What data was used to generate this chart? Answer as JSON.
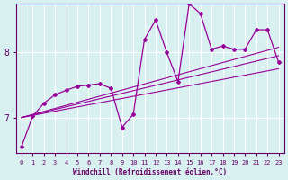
{
  "xlabel": "Windchill (Refroidissement éolien,°C)",
  "ylabel": "",
  "bg_color": "#d8f0f0",
  "grid_color": "#ffffff",
  "line_color": "#990099",
  "axis_color": "#660066",
  "text_color": "#660066",
  "xlim": [
    -0.5,
    23.5
  ],
  "ylim": [
    6.45,
    8.75
  ],
  "xticks": [
    0,
    1,
    2,
    3,
    4,
    5,
    6,
    7,
    8,
    9,
    10,
    11,
    12,
    13,
    14,
    15,
    16,
    17,
    18,
    19,
    20,
    21,
    22,
    23
  ],
  "yticks": [
    7,
    8
  ],
  "zigzag_x": [
    0,
    1,
    2,
    3,
    4,
    5,
    6,
    7,
    8,
    9,
    10,
    11,
    12,
    13,
    14,
    15,
    16,
    17,
    18,
    19,
    20,
    21,
    22,
    23
  ],
  "zigzag_y": [
    6.55,
    7.02,
    7.22,
    7.35,
    7.42,
    7.48,
    7.5,
    7.52,
    7.45,
    6.85,
    7.05,
    8.2,
    8.5,
    8.0,
    7.55,
    8.75,
    8.6,
    8.05,
    8.1,
    8.05,
    8.05,
    8.35,
    8.35,
    7.85
  ],
  "trend_lines": [
    {
      "x0": 0,
      "y0": 7.0,
      "x1": 23,
      "y1": 7.75
    },
    {
      "x0": 0,
      "y0": 7.0,
      "x1": 23,
      "y1": 7.95
    },
    {
      "x0": 0,
      "y0": 7.0,
      "x1": 23,
      "y1": 8.08
    }
  ]
}
